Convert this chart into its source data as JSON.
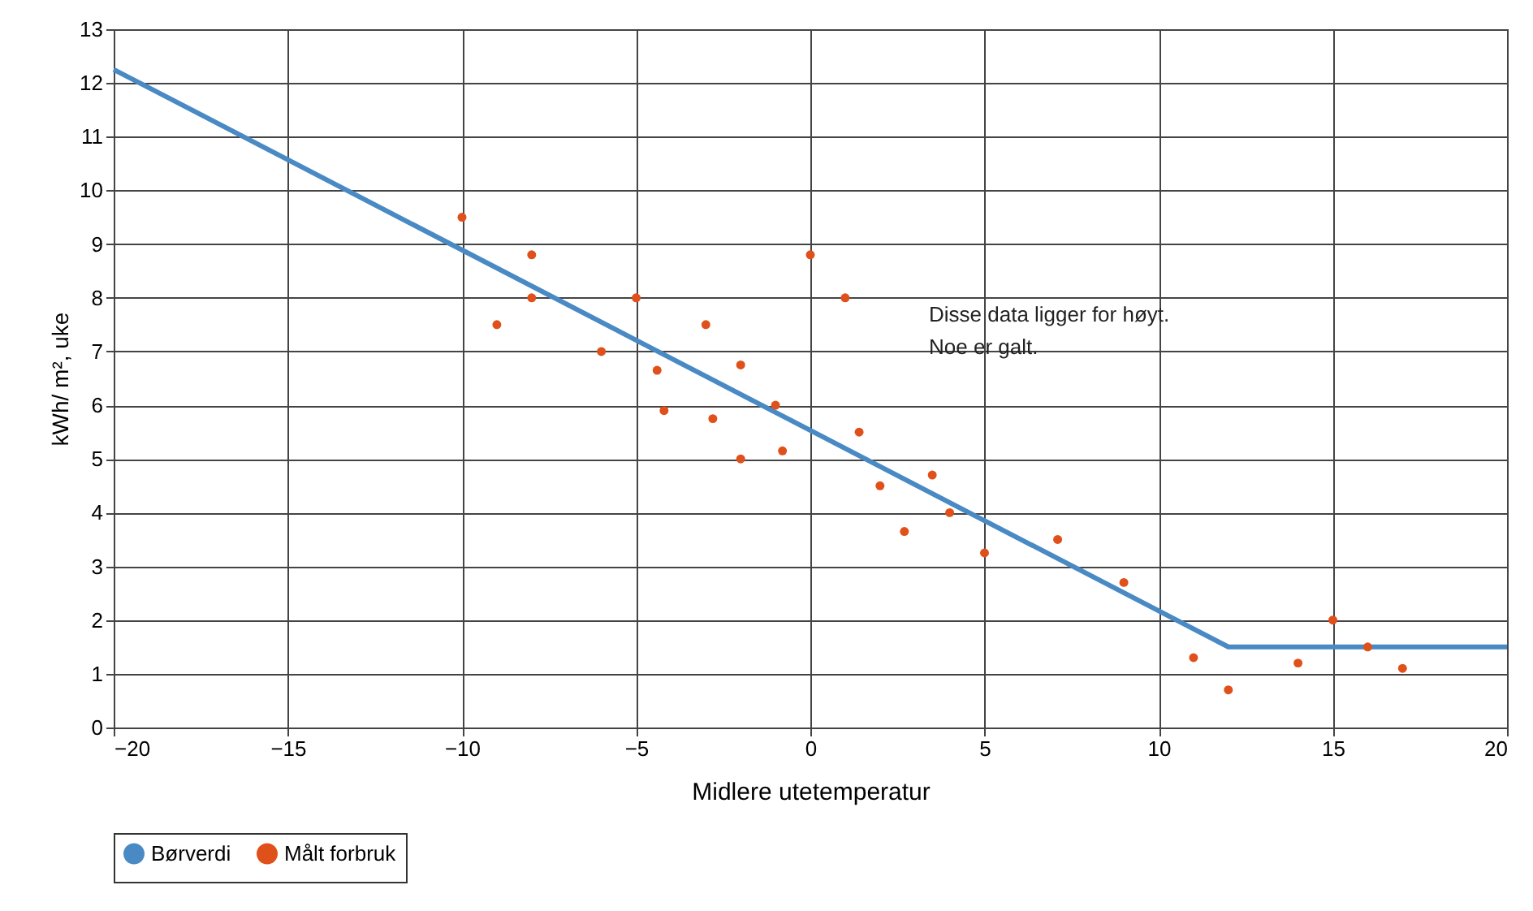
{
  "chart_data": {
    "type": "line",
    "xlabel": "Midlere utetemperatur",
    "ylabel": "kWh/ m², uke",
    "xlim": [
      -20,
      20
    ],
    "xticks": [
      -20,
      -15,
      -10,
      -5,
      0,
      5,
      10,
      15,
      20
    ],
    "ylim": [
      0,
      13
    ],
    "yticks": [
      0,
      1,
      2,
      3,
      4,
      5,
      6,
      7,
      8,
      9,
      10,
      11,
      12,
      13
    ],
    "grid": true,
    "legend": "bottom",
    "series": [
      {
        "name": "Børverdi",
        "color": "#4a8ac4",
        "x": [
          -20,
          12,
          20
        ],
        "values": [
          12.25,
          1.5,
          1.5
        ]
      },
      {
        "name": "Målt forbruk",
        "type": "scatter",
        "marker": "circle",
        "color": "#e0501a",
        "x": [
          -10,
          -9,
          -8,
          -8,
          -6,
          -5,
          -4.4,
          -4.2,
          -3,
          -2.8,
          -2,
          -2,
          -1,
          -0.8,
          0,
          1,
          1.4,
          2,
          2.7,
          3.5,
          4,
          5,
          7.1,
          9,
          11,
          12,
          14,
          15,
          16,
          17
        ],
        "values": [
          9.5,
          7.5,
          8.8,
          8.0,
          7.0,
          8.0,
          6.65,
          5.9,
          7.5,
          5.75,
          6.75,
          5.0,
          6.0,
          5.15,
          8.8,
          8.0,
          5.5,
          4.5,
          3.65,
          4.7,
          4.0,
          3.25,
          3.5,
          2.7,
          1.3,
          0.7,
          1.2,
          2.0,
          1.5,
          1.1
        ]
      }
    ],
    "annotations": [
      "Disse data ligger for høyt.\nNoe er galt."
    ]
  }
}
